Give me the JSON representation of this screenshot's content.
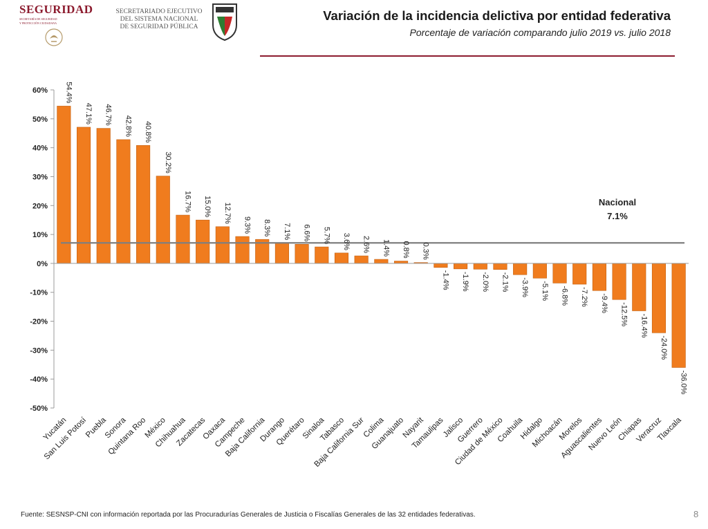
{
  "header": {
    "logo_word": "SEGURIDAD",
    "logo_sub": [
      "SECRETARÍA DE SEGURIDAD",
      "Y PROTECCIÓN CIUDADANA"
    ],
    "secretariado_lines": [
      "SECRETARIADO EJECUTIVO",
      "DEL SISTEMA NACIONAL",
      "DE SEGURIDAD PÚBLICA"
    ],
    "title": "Variación de la incidencia delictiva por entidad federativa",
    "subtitle": "Porcentaje de variación comparando julio 2019 vs. julio 2018"
  },
  "colors": {
    "bar": "#f07c1e",
    "bar_edge": "#c25f10",
    "national_line": "#7f7f7f",
    "brand": "#8c1b2e"
  },
  "chart_data": {
    "type": "bar",
    "categories": [
      "Yucatán",
      "San Luis Potosí",
      "Puebla",
      "Sonora",
      "Quintana Roo",
      "México",
      "Chihuahua",
      "Zacatecas",
      "Oaxaca",
      "Campeche",
      "Baja California",
      "Durango",
      "Querétaro",
      "Sinaloa",
      "Tabasco",
      "Baja California Sur",
      "Colima",
      "Guanajuato",
      "Nayarit",
      "Tamaulipas",
      "Jalisco",
      "Guerrero",
      "Ciudad de México",
      "Coahuila",
      "Hidalgo",
      "Michoacán",
      "Morelos",
      "Aguascalientes",
      "Nuevo León",
      "Chiapas",
      "Veracruz",
      "Tlaxcala"
    ],
    "values": [
      54.4,
      47.1,
      46.7,
      42.8,
      40.8,
      30.2,
      16.7,
      15.0,
      12.7,
      9.3,
      8.3,
      7.1,
      6.6,
      5.7,
      3.6,
      2.6,
      1.4,
      0.8,
      0.3,
      -1.4,
      -1.9,
      -2.0,
      -2.1,
      -3.9,
      -5.1,
      -6.8,
      -7.2,
      -9.4,
      -12.5,
      -16.4,
      -24.0,
      -36.0
    ],
    "value_labels": [
      "54.4%",
      "47.1%",
      "46.7%",
      "42.8%",
      "40.8%",
      "30.2%",
      "16.7%",
      "15.0%",
      "12.7%",
      "9.3%",
      "8.3%",
      "7.1%",
      "6.6%",
      "5.7%",
      "3.6%",
      "2.6%",
      "1.4%",
      "0.8%",
      "0.3%",
      "-1.4%",
      "-1.9%",
      "-2.0%",
      "-2.1%",
      "-3.9%",
      "-5.1%",
      "-6.8%",
      "-7.2%",
      "-9.4%",
      "-12.5%",
      "-16.4%",
      "-24.0%",
      "-36.0%"
    ],
    "yticks": [
      60,
      50,
      40,
      30,
      20,
      10,
      0,
      -10,
      -20,
      -30,
      -40,
      -50
    ],
    "ytick_labels": [
      "60%",
      "50%",
      "40%",
      "30%",
      "20%",
      "10%",
      "0%",
      "-10%",
      "-20%",
      "-30%",
      "-40%",
      "-50%"
    ],
    "ylim": [
      -50,
      60
    ],
    "reference_line": {
      "value": 7.1,
      "label": "Nacional",
      "value_label": "7.1%"
    },
    "grid": false
  },
  "footer": {
    "source": "Fuente: SESNSP-CNI con información reportada por las Procuradurías Generales de Justicia o Fiscalías Generales de las 32 entidades federativas.",
    "page_number": "8"
  }
}
